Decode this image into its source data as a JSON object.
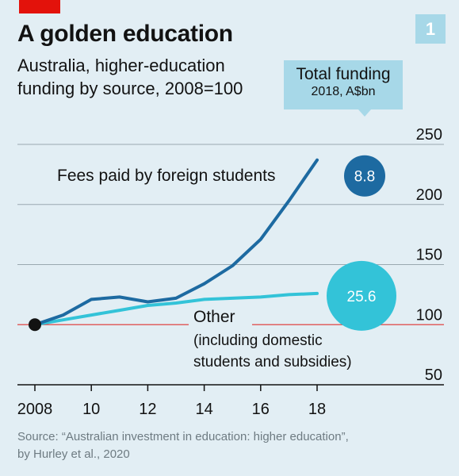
{
  "header": {
    "badge": "1",
    "title": "A golden education",
    "subtitle_line1": "Australia, higher-education",
    "subtitle_line2": "funding by source, 2008=100"
  },
  "callout": {
    "title": "Total funding",
    "subtitle": "2018, A$bn"
  },
  "source_line1": "Source: “Australian investment in education: higher education”,",
  "source_line2": "by Hurley et al., 2020",
  "colors": {
    "background": "#e2eef4",
    "brand_red": "#e3120b",
    "foreign_line": "#1d6aa1",
    "other_line": "#33c3d8",
    "baseline": "#e06060",
    "grid": "#9aa8b0"
  },
  "chart_data": {
    "type": "line",
    "x": [
      2008,
      2009,
      2010,
      2011,
      2012,
      2013,
      2014,
      2015,
      2016,
      2017,
      2018
    ],
    "xticks": [
      2008,
      2010,
      2012,
      2014,
      2016,
      2018
    ],
    "xtick_labels": [
      "2008",
      "10",
      "12",
      "14",
      "16",
      "18"
    ],
    "xlim": [
      2008,
      2018
    ],
    "yticks": [
      50,
      100,
      150,
      200,
      250
    ],
    "ylim": [
      50,
      250
    ],
    "baseline": 100,
    "grid": true,
    "series": [
      {
        "name": "Fees paid by foreign students",
        "values": [
          100,
          108,
          121,
          123,
          119,
          122,
          134,
          149,
          171,
          203,
          237
        ],
        "total_label": "8.8"
      },
      {
        "name": "Other",
        "name_detail_line1": "(including domestic",
        "name_detail_line2": "students and subsidies)",
        "values": [
          100,
          104,
          108,
          112,
          116,
          118,
          121,
          122,
          123,
          125,
          126
        ],
        "total_label": "25.6"
      }
    ]
  }
}
